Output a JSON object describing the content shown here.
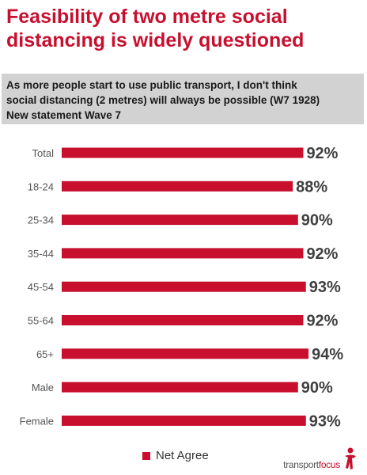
{
  "title": "Feasibility of two metre social distancing is widely questioned",
  "statement": {
    "line1": "As more people start to use public transport, I don't think",
    "line2": "social distancing (2 metres) will always be possible (W7 1928)",
    "line3": "New statement Wave 7"
  },
  "chart_data": {
    "type": "bar",
    "orientation": "horizontal",
    "categories": [
      "Total",
      "18-24",
      "25-34",
      "35-44",
      "45-54",
      "55-64",
      "65+",
      "Male",
      "Female"
    ],
    "series": [
      {
        "name": "Net Agree",
        "values": [
          92,
          88,
          90,
          92,
          93,
          92,
          94,
          90,
          93
        ]
      }
    ],
    "value_suffix": "%",
    "xlim": [
      0,
      100
    ],
    "grid": false,
    "legend_position": "bottom",
    "colors": {
      "bar": "#c8102e"
    }
  },
  "legend": {
    "label": "Net Agree"
  },
  "logo": {
    "part1": "transport",
    "part2": "focus"
  },
  "colors": {
    "accent": "#c8102e",
    "statement_bg": "#d2d2d2"
  }
}
